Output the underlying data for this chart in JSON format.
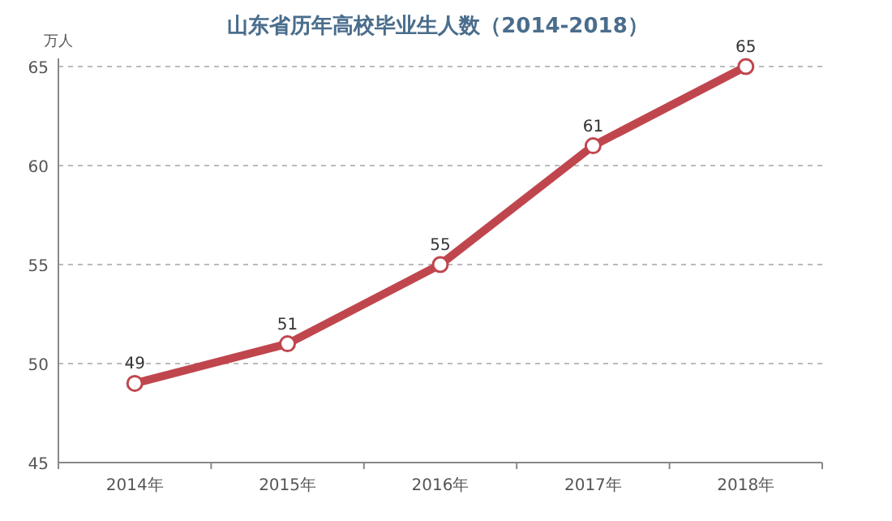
{
  "chart_data": {
    "type": "line",
    "title": "山东省历年高校毕业生人数（2014-2018）",
    "ylabel": "万人",
    "categories": [
      "2014年",
      "2015年",
      "2016年",
      "2017年",
      "2018年"
    ],
    "series": [
      {
        "color": "#c0464e",
        "values": [
          49,
          51,
          55,
          61,
          65
        ]
      }
    ],
    "ylim": [
      45,
      65
    ],
    "yticks": [
      45,
      50,
      55,
      60,
      65
    ],
    "grid": "y",
    "marker": "circle",
    "data_labels": true
  }
}
